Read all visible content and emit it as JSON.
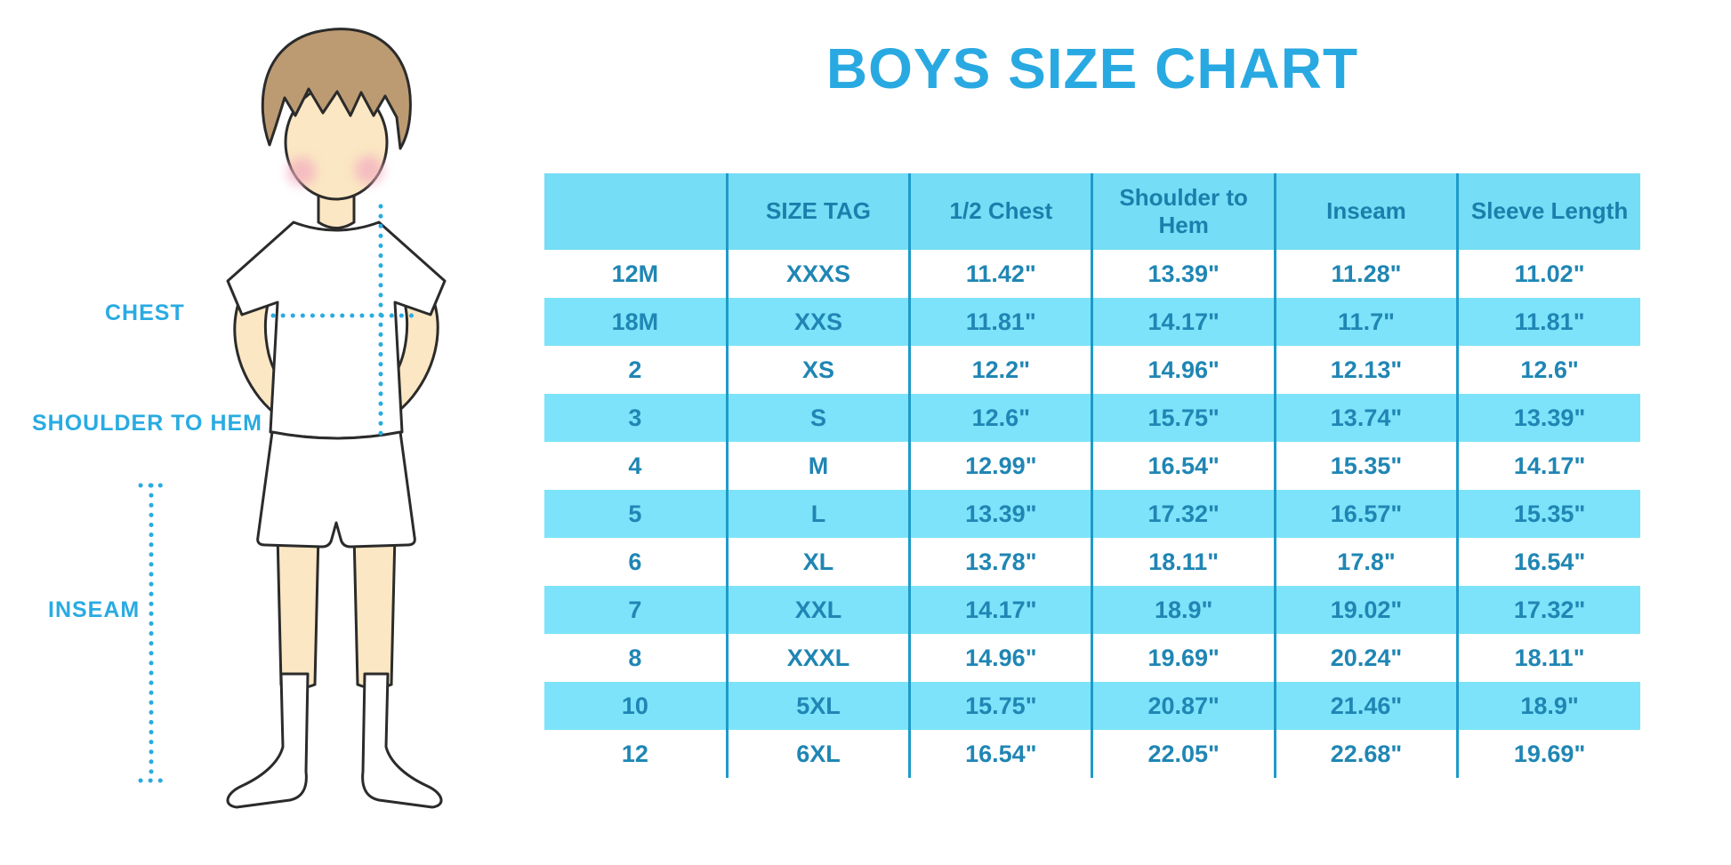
{
  "title": "BOYS SIZE CHART",
  "diagram": {
    "chest_label": "CHEST",
    "shoulder_to_hem_label": "SHOULDER TO HEM",
    "inseam_label": "INSEAM"
  },
  "colors": {
    "title_blue": "#29A9E1",
    "label_blue": "#29ABE2",
    "dotted_line_blue": "#29ABE2",
    "header_fill": "#75DDF5",
    "row_alt_fill": "#7DE3FA",
    "column_line": "#1D9BC9",
    "table_text": "#1F86B4",
    "skin": "#FBE7C3",
    "hair": "#BD9B72",
    "cheek": "#F3AFC0",
    "outline": "#2B2B2B"
  },
  "chart_data": {
    "type": "table",
    "title": "BOYS SIZE CHART",
    "columns": [
      "",
      "SIZE TAG",
      "1/2 Chest",
      "Shoulder to Hem",
      "Inseam",
      "Sleeve Length"
    ],
    "rows": [
      [
        "12M",
        "XXXS",
        "11.42\"",
        "13.39\"",
        "11.28\"",
        "11.02\""
      ],
      [
        "18M",
        "XXS",
        "11.81\"",
        "14.17\"",
        "11.7\"",
        "11.81\""
      ],
      [
        "2",
        "XS",
        "12.2\"",
        "14.96\"",
        "12.13\"",
        "12.6\""
      ],
      [
        "3",
        "S",
        "12.6\"",
        "15.75\"",
        "13.74\"",
        "13.39\""
      ],
      [
        "4",
        "M",
        "12.99\"",
        "16.54\"",
        "15.35\"",
        "14.17\""
      ],
      [
        "5",
        "L",
        "13.39\"",
        "17.32\"",
        "16.57\"",
        "15.35\""
      ],
      [
        "6",
        "XL",
        "13.78\"",
        "18.11\"",
        "17.8\"",
        "16.54\""
      ],
      [
        "7",
        "XXL",
        "14.17\"",
        "18.9\"",
        "19.02\"",
        "17.32\""
      ],
      [
        "8",
        "XXXL",
        "14.96\"",
        "19.69\"",
        "20.24\"",
        "18.11\""
      ],
      [
        "10",
        "5XL",
        "15.75\"",
        "20.87\"",
        "21.46\"",
        "18.9\""
      ],
      [
        "12",
        "6XL",
        "16.54\"",
        "22.05\"",
        "22.68\"",
        "19.69\""
      ]
    ]
  }
}
